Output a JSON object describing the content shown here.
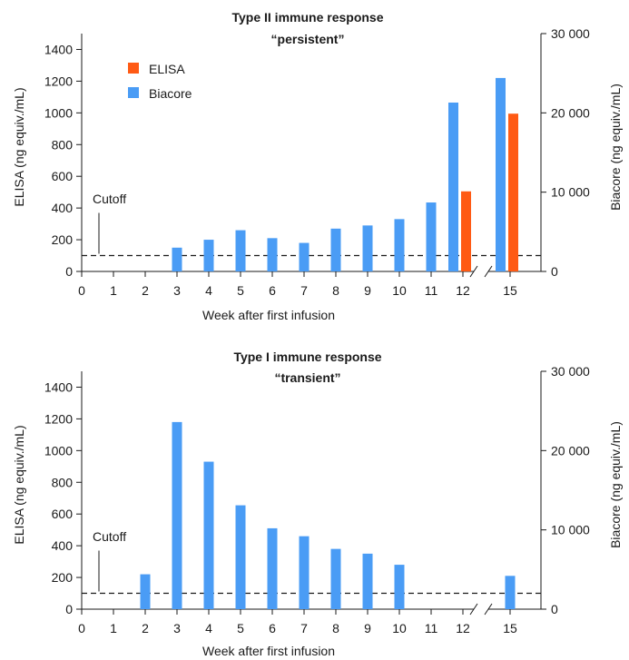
{
  "colors": {
    "elisa": "#ff5a14",
    "biacore": "#4a9cf5",
    "axis": "#1a1a1a"
  },
  "chart_data": [
    {
      "type": "bar",
      "title_line1": "Type II immune response",
      "title_line2": "“persistent”",
      "xlabel": "Week after first infusion",
      "ylabel_left": "ELISA (ng equiv./mL)",
      "ylabel_right": "Biacore (ng equiv./mL)",
      "ylim_left": [
        0,
        1500
      ],
      "ylim_right": [
        0,
        30000
      ],
      "yticks_left": [
        "0",
        "200",
        "400",
        "600",
        "800",
        "1000",
        "1200",
        "1400"
      ],
      "yticks_right": [
        "0",
        "10 000",
        "20 000",
        "30 000"
      ],
      "categories": [
        "0",
        "1",
        "2",
        "3",
        "4",
        "5",
        "6",
        "7",
        "8",
        "9",
        "10",
        "11",
        "12",
        "15"
      ],
      "cutoff": {
        "label": "Cutoff",
        "value": 100
      },
      "legend": [
        "ELISA",
        "Biacore"
      ],
      "series": [
        {
          "name": "Biacore",
          "values": [
            null,
            null,
            null,
            150,
            200,
            260,
            210,
            180,
            270,
            290,
            330,
            435,
            1065,
            1220
          ]
        },
        {
          "name": "ELISA",
          "values": [
            null,
            null,
            null,
            null,
            null,
            null,
            null,
            null,
            null,
            null,
            null,
            null,
            505,
            995
          ]
        }
      ]
    },
    {
      "type": "bar",
      "title_line1": "Type I immune response",
      "title_line2": "“transient”",
      "xlabel": "Week after first infusion",
      "ylabel_left": "ELISA (ng equiv./mL)",
      "ylabel_right": "Biacore (ng equiv./mL)",
      "ylim_left": [
        0,
        1500
      ],
      "ylim_right": [
        0,
        30000
      ],
      "yticks_left": [
        "0",
        "200",
        "400",
        "600",
        "800",
        "1000",
        "1200",
        "1400"
      ],
      "yticks_right": [
        "0",
        "10 000",
        "20 000",
        "30 000"
      ],
      "categories": [
        "0",
        "1",
        "2",
        "3",
        "4",
        "5",
        "6",
        "7",
        "8",
        "9",
        "10",
        "11",
        "12",
        "15"
      ],
      "cutoff": {
        "label": "Cutoff",
        "value": 100
      },
      "series": [
        {
          "name": "Biacore",
          "values": [
            null,
            null,
            220,
            1180,
            930,
            655,
            510,
            460,
            380,
            350,
            280,
            null,
            null,
            210
          ]
        }
      ]
    }
  ]
}
